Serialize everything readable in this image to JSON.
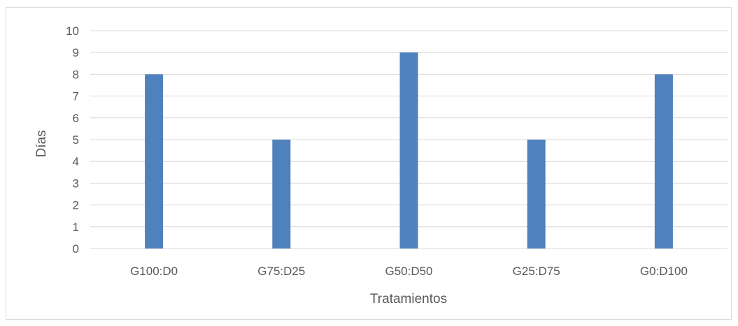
{
  "chart_data": {
    "type": "bar",
    "categories": [
      "G100:D0",
      "G75:D25",
      "G50:D50",
      "G25:D75",
      "G0:D100"
    ],
    "values": [
      8,
      5,
      9,
      5,
      8
    ],
    "title": "",
    "xlabel": "Tratamientos",
    "ylabel": "Días",
    "ylim": [
      0,
      10
    ],
    "yticks": [
      "0",
      "1",
      "2",
      "3",
      "4",
      "5",
      "6",
      "7",
      "8",
      "9",
      "10"
    ],
    "grid": true,
    "bar_color": "#4f81bd",
    "grid_color": "#d9d9d9"
  }
}
